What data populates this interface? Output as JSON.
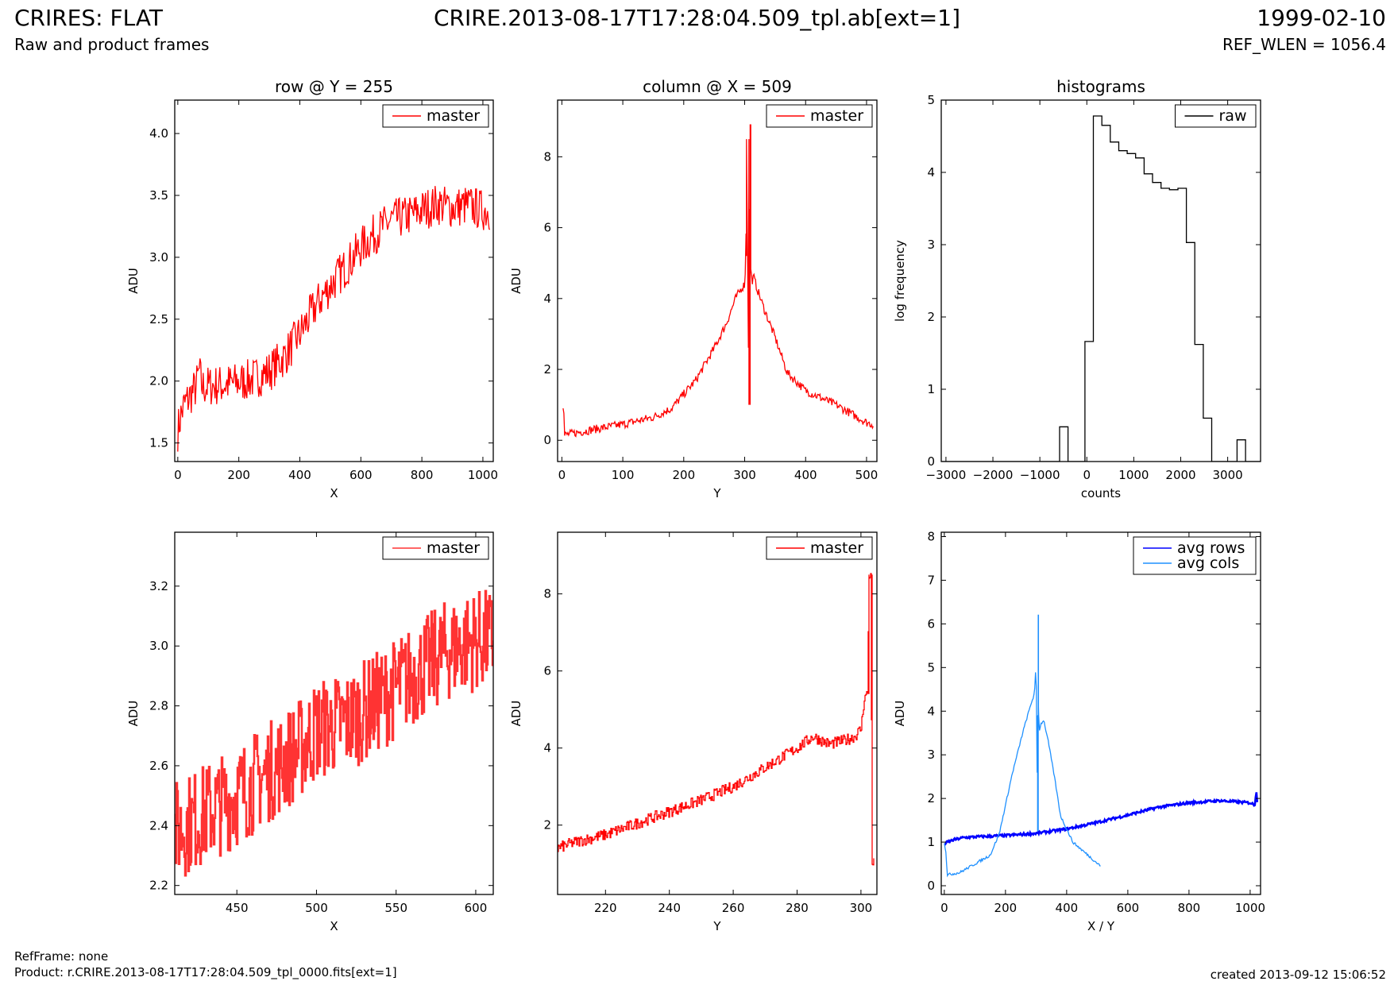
{
  "header": {
    "title_left": "CRIRES: FLAT",
    "subtitle_left": "Raw and product frames",
    "title_center": "CRIRE.2013-08-17T17:28:04.509_tpl.ab[ext=1]",
    "title_right": "1999-02-10",
    "subtitle_right": "REF_WLEN = 1056.4"
  },
  "footer": {
    "refframe": "RefFrame: none",
    "product": "Product: r.CRIRE.2013-08-17T17:28:04.509_tpl_0000.fits[ext=1]",
    "created": "created 2013-09-12 15:06:52"
  },
  "colors": {
    "master": "#ff0000",
    "master_light": "#ff3333",
    "raw": "#000000",
    "avg_rows": "#0000ff",
    "avg_cols": "#1e90ff"
  },
  "chart_data": [
    {
      "id": "row-top",
      "type": "line",
      "title": "row @ Y = 255",
      "xlabel": "X",
      "ylabel": "ADU",
      "xlim": [
        -10,
        1034
      ],
      "ylim": [
        1.35,
        4.27
      ],
      "xticks": [
        0,
        200,
        400,
        600,
        800,
        1000
      ],
      "yticks": [
        1.5,
        2.0,
        2.5,
        3.0,
        3.5,
        4.0
      ],
      "ytick_labels": [
        "1.5",
        "2.0",
        "2.5",
        "3.0",
        "3.5",
        "4.0"
      ],
      "legend": {
        "position": "top-right",
        "entries": [
          {
            "label": "master",
            "color": "#ff0000"
          }
        ]
      },
      "series": [
        {
          "name": "master",
          "color": "#ff0000",
          "width": 1.3,
          "x": [
            0,
            10,
            20,
            40,
            60,
            70,
            80,
            100,
            150,
            200,
            250,
            300,
            350,
            400,
            450,
            500,
            550,
            600,
            650,
            700,
            750,
            800,
            850,
            900,
            950,
            1000,
            1023
          ],
          "y": [
            1.6,
            1.72,
            1.8,
            1.88,
            1.95,
            2.08,
            1.95,
            1.96,
            1.97,
            1.99,
            2.02,
            2.08,
            2.2,
            2.38,
            2.6,
            2.77,
            2.92,
            3.08,
            3.2,
            3.3,
            3.33,
            3.38,
            3.43,
            3.4,
            3.42,
            3.38,
            3.38
          ],
          "noise": 0.17
        }
      ]
    },
    {
      "id": "col-top",
      "type": "line",
      "title": "column @ X = 509",
      "xlabel": "Y",
      "ylabel": "ADU",
      "xlim": [
        -7,
        517
      ],
      "ylim": [
        -0.6,
        9.6
      ],
      "xticks": [
        0,
        100,
        200,
        300,
        400,
        500
      ],
      "yticks": [
        0,
        2,
        4,
        6,
        8
      ],
      "ytick_labels": [
        "0",
        "2",
        "4",
        "6",
        "8"
      ],
      "legend": {
        "position": "top-right",
        "entries": [
          {
            "label": "master",
            "color": "#ff0000"
          }
        ]
      },
      "series": [
        {
          "name": "master",
          "color": "#ff0000",
          "width": 1.3,
          "x": [
            2,
            3,
            4,
            5,
            50,
            100,
            150,
            180,
            220,
            250,
            270,
            285,
            295,
            300,
            302,
            303,
            307,
            308,
            309,
            310,
            312,
            315,
            320,
            330,
            350,
            370,
            400,
            450,
            500,
            511
          ],
          "y": [
            1.0,
            1.0,
            0.12,
            0.15,
            0.3,
            0.45,
            0.65,
            0.9,
            1.7,
            2.6,
            3.3,
            4.0,
            4.3,
            4.4,
            5.2,
            8.5,
            1.0,
            1.0,
            8.9,
            4.8,
            4.5,
            4.6,
            4.3,
            3.8,
            2.9,
            1.9,
            1.4,
            1.0,
            0.5,
            0.45
          ],
          "noise": 0.12
        }
      ]
    },
    {
      "id": "hist-top",
      "type": "histogram",
      "title": "histograms",
      "xlabel": "counts",
      "ylabel": "log frequency",
      "xlim": [
        -3100,
        3700
      ],
      "ylim": [
        0,
        5
      ],
      "xticks": [
        -3000,
        -2000,
        -1000,
        0,
        1000,
        2000,
        3000
      ],
      "yticks": [
        0,
        1,
        2,
        3,
        4,
        5
      ],
      "xtick_labels": [
        "−3000",
        "−2000",
        "−1000",
        "0",
        "1000",
        "2000",
        "3000"
      ],
      "ytick_labels": [
        "0",
        "1",
        "2",
        "3",
        "4",
        "5"
      ],
      "legend": {
        "position": "top-right",
        "entries": [
          {
            "label": "raw",
            "color": "#000000"
          }
        ]
      },
      "series": [
        {
          "name": "raw",
          "color": "#000000",
          "width": 1.3,
          "bins_start": -3100,
          "bin_width": 180,
          "counts": [
            0,
            0,
            0,
            0,
            0,
            0,
            0,
            0,
            0,
            0,
            0,
            0,
            0,
            0,
            0.48,
            0,
            0,
            1.66,
            4.78,
            4.65,
            4.42,
            4.3,
            4.26,
            4.2,
            3.98,
            3.86,
            3.78,
            3.76,
            3.78,
            3.03,
            1.62,
            0.6,
            0,
            0,
            0,
            0.3,
            0,
            0,
            0.3
          ]
        }
      ]
    },
    {
      "id": "row-bottom",
      "type": "line",
      "title": "",
      "xlabel": "X",
      "ylabel": "ADU",
      "xlim": [
        411,
        611
      ],
      "ylim": [
        2.17,
        3.38
      ],
      "xticks": [
        450,
        500,
        550,
        600
      ],
      "yticks": [
        2.2,
        2.4,
        2.6,
        2.8,
        3.0,
        3.2
      ],
      "ytick_labels": [
        "2.2",
        "2.4",
        "2.6",
        "2.8",
        "3.0",
        "3.2"
      ],
      "legend": {
        "position": "top-right",
        "entries": [
          {
            "label": "master",
            "color": "#ff3333"
          }
        ]
      },
      "series": [
        {
          "name": "master",
          "color": "#ff3333",
          "width": 2.5,
          "x": [
            411,
            430,
            450,
            470,
            490,
            500,
            520,
            540,
            560,
            580,
            600,
            611
          ],
          "y": [
            2.38,
            2.44,
            2.5,
            2.58,
            2.66,
            2.72,
            2.75,
            2.82,
            2.9,
            2.98,
            3.02,
            3.02
          ],
          "noise": 0.17,
          "steps": 1
        }
      ]
    },
    {
      "id": "col-bottom",
      "type": "line",
      "title": "",
      "xlabel": "Y",
      "ylabel": "ADU",
      "xlim": [
        205,
        305
      ],
      "ylim": [
        0.2,
        9.6
      ],
      "xticks": [
        220,
        240,
        260,
        280,
        300
      ],
      "yticks": [
        2,
        4,
        6,
        8
      ],
      "ytick_labels": [
        "2",
        "4",
        "6",
        "8"
      ],
      "legend": {
        "position": "top-right",
        "entries": [
          {
            "label": "master",
            "color": "#ff0000"
          }
        ]
      },
      "series": [
        {
          "name": "master",
          "color": "#ff0000",
          "width": 1.3,
          "x": [
            205,
            210,
            220,
            230,
            240,
            250,
            260,
            270,
            280,
            285,
            290,
            295,
            298,
            300,
            301,
            302,
            302.5,
            303,
            303.5,
            304
          ],
          "y": [
            1.4,
            1.55,
            1.75,
            2.05,
            2.35,
            2.65,
            3.0,
            3.5,
            4.0,
            4.3,
            4.1,
            4.2,
            4.3,
            4.5,
            5.3,
            5.4,
            8.5,
            8.5,
            1.0,
            1.0
          ],
          "noise": 0.15,
          "steps": 1
        }
      ]
    },
    {
      "id": "avg-bottom",
      "type": "line",
      "title": "",
      "xlabel": "X / Y",
      "ylabel": "ADU",
      "xlim": [
        -10,
        1034
      ],
      "ylim": [
        -0.2,
        8.1
      ],
      "xticks": [
        0,
        200,
        400,
        600,
        800,
        1000
      ],
      "yticks": [
        0,
        1,
        2,
        3,
        4,
        5,
        6,
        7,
        8
      ],
      "ytick_labels": [
        "0",
        "1",
        "2",
        "3",
        "4",
        "5",
        "6",
        "7",
        "8"
      ],
      "legend": {
        "position": "top-right",
        "entries": [
          {
            "label": "avg rows",
            "color": "#0000ff"
          },
          {
            "label": "avg cols",
            "color": "#1e90ff"
          }
        ]
      },
      "series": [
        {
          "name": "avg rows",
          "color": "#0000ff",
          "width": 2.6,
          "x": [
            0,
            10,
            30,
            60,
            100,
            200,
            300,
            400,
            500,
            600,
            700,
            800,
            900,
            1000,
            1015,
            1020,
            1023
          ],
          "y": [
            0.95,
            1.0,
            1.05,
            1.1,
            1.12,
            1.15,
            1.2,
            1.3,
            1.45,
            1.62,
            1.8,
            1.9,
            1.95,
            1.9,
            1.85,
            2.2,
            1.9
          ],
          "noise": 0.03
        },
        {
          "name": "avg cols",
          "color": "#1e90ff",
          "width": 1.3,
          "x": [
            0,
            5,
            10,
            50,
            100,
            150,
            180,
            220,
            260,
            285,
            295,
            300,
            302,
            305,
            307,
            308,
            310,
            315,
            325,
            340,
            360,
            380,
            420,
            470,
            511
          ],
          "y": [
            1.0,
            0.8,
            0.25,
            0.3,
            0.5,
            0.7,
            1.2,
            2.5,
            3.6,
            4.2,
            4.4,
            5.1,
            3.9,
            1.25,
            6.2,
            4.1,
            3.5,
            3.7,
            3.8,
            3.3,
            2.5,
            1.6,
            1.0,
            0.7,
            0.45
          ],
          "noise": 0.03
        }
      ]
    }
  ]
}
